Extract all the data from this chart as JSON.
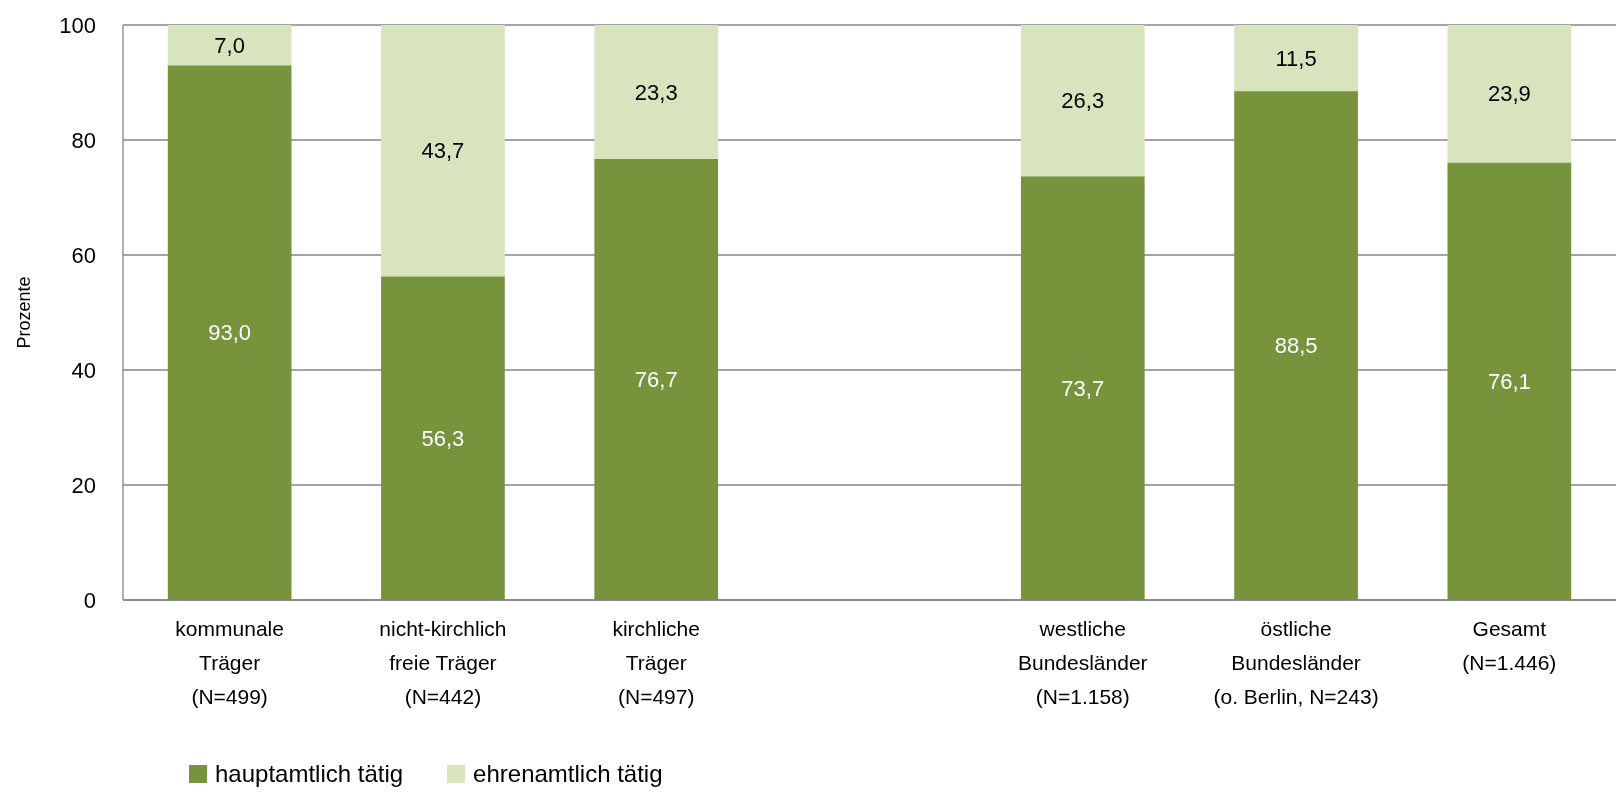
{
  "chart_data": {
    "type": "bar",
    "stacked": true,
    "ylabel": "Prozente",
    "categories": [
      "kommunale\nTräger\n(N=499)",
      "nicht-kirchlich\nfreie Träger\n(N=442)",
      "kirchliche\nTräger\n(N=497)",
      null,
      "westliche\nBundesländer\n(N=1.158)",
      "östliche\nBundesländer\n(o. Berlin, N=243)",
      "Gesamt\n(N=1.446)"
    ],
    "series": [
      {
        "name": "hauptamtlich tätig",
        "color": "#77933c",
        "values": [
          93.0,
          56.3,
          76.7,
          null,
          73.7,
          88.5,
          76.1
        ],
        "value_labels": [
          "93,0",
          "56,3",
          "76,7",
          null,
          "73,7",
          "88,5",
          "76,1"
        ]
      },
      {
        "name": "ehrenamtlich tätig",
        "color": "#d7e4bd",
        "values": [
          7.0,
          43.7,
          23.3,
          null,
          26.3,
          11.5,
          23.9
        ],
        "value_labels": [
          "7,0",
          "43,7",
          "23,3",
          null,
          "26,3",
          "11,5",
          "23,9"
        ]
      }
    ],
    "ylim": [
      0,
      100
    ],
    "yticks": [
      0,
      20,
      40,
      60,
      80,
      100
    ],
    "grid": "y",
    "legend": "bottom left"
  }
}
